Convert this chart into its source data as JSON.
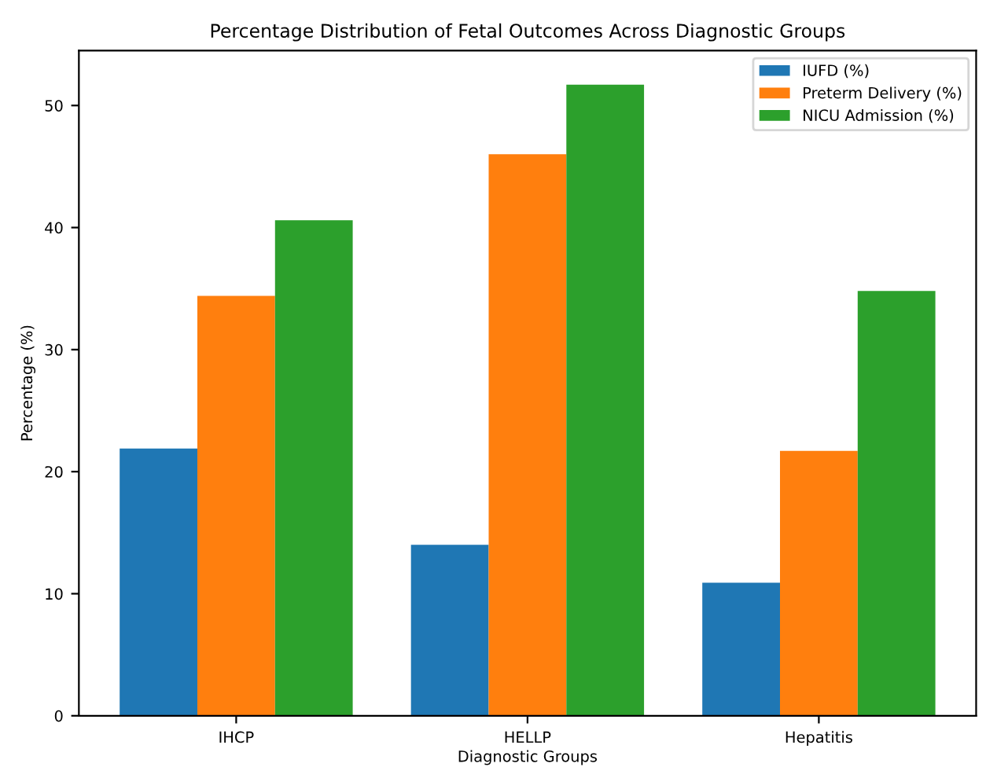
{
  "chart_data": {
    "type": "bar",
    "title": "Percentage Distribution of Fetal Outcomes Across Diagnostic Groups",
    "xlabel": "Diagnostic Groups",
    "ylabel": "Percentage (%)",
    "categories": [
      "IHCP",
      "HELLP",
      "Hepatitis"
    ],
    "series": [
      {
        "name": "IUFD (%)",
        "color": "#1f77b4",
        "values": [
          21.9,
          14.0,
          10.9
        ]
      },
      {
        "name": "Preterm Delivery (%)",
        "color": "#ff7f0e",
        "values": [
          34.4,
          46.0,
          21.7
        ]
      },
      {
        "name": "NICU Admission (%)",
        "color": "#2ca02c",
        "values": [
          40.6,
          51.7,
          34.8
        ]
      }
    ],
    "ylim": [
      0,
      54.5
    ],
    "yticks": [
      0,
      10,
      20,
      30,
      40,
      50
    ],
    "legend": "top right",
    "grid": false
  }
}
